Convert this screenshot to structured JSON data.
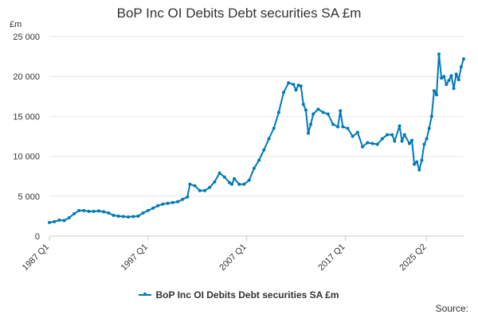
{
  "chart_data": {
    "type": "line",
    "title": "BoP Inc OI Debits Debt securities SA £m",
    "ylabel": "£m",
    "xlabel": "",
    "ylim": [
      0,
      25000
    ],
    "yticks": [
      0,
      5000,
      10000,
      15000,
      20000,
      25000
    ],
    "ytick_labels": [
      "0",
      "5 000",
      "10 000",
      "15 000",
      "20 000",
      "25 000"
    ],
    "xtick_labels": [
      "1987 Q1",
      "1997 Q1",
      "2007 Q1",
      "2017 Q1",
      "2025 Q2"
    ],
    "grid": true,
    "legend_position": "bottom",
    "series": [
      {
        "name": "BoP Inc OI Debits Debt securities SA £m",
        "color": "#0079b7",
        "points": [
          [
            "1987 Q1",
            1700
          ],
          [
            "1987 Q3",
            1800
          ],
          [
            "1988 Q1",
            2000
          ],
          [
            "1988 Q3",
            1950
          ],
          [
            "1989 Q1",
            2300
          ],
          [
            "1989 Q3",
            2800
          ],
          [
            "1990 Q1",
            3200
          ],
          [
            "1990 Q3",
            3200
          ],
          [
            "1991 Q1",
            3100
          ],
          [
            "1991 Q3",
            3100
          ],
          [
            "1992 Q1",
            3150
          ],
          [
            "1992 Q3",
            3050
          ],
          [
            "1993 Q1",
            2900
          ],
          [
            "1993 Q3",
            2600
          ],
          [
            "1994 Q1",
            2500
          ],
          [
            "1994 Q3",
            2450
          ],
          [
            "1995 Q1",
            2400
          ],
          [
            "1995 Q3",
            2450
          ],
          [
            "1996 Q1",
            2500
          ],
          [
            "1996 Q3",
            2900
          ],
          [
            "1997 Q1",
            3200
          ],
          [
            "1997 Q3",
            3500
          ],
          [
            "1998 Q1",
            3800
          ],
          [
            "1998 Q3",
            4000
          ],
          [
            "1999 Q1",
            4100
          ],
          [
            "1999 Q3",
            4200
          ],
          [
            "2000 Q1",
            4300
          ],
          [
            "2000 Q3",
            4600
          ],
          [
            "2001 Q1",
            4900
          ],
          [
            "2001 Q2",
            6500
          ],
          [
            "2001 Q4",
            6300
          ],
          [
            "2002 Q2",
            5700
          ],
          [
            "2002 Q4",
            5700
          ],
          [
            "2003 Q2",
            6100
          ],
          [
            "2003 Q4",
            6800
          ],
          [
            "2004 Q2",
            7900
          ],
          [
            "2004 Q4",
            7400
          ],
          [
            "2005 Q2",
            6700
          ],
          [
            "2005 Q3",
            6500
          ],
          [
            "2005 Q4",
            7200
          ],
          [
            "2006 Q2",
            6500
          ],
          [
            "2006 Q4",
            6500
          ],
          [
            "2007 Q2",
            7000
          ],
          [
            "2007 Q4",
            8500
          ],
          [
            "2008 Q2",
            9500
          ],
          [
            "2008 Q4",
            10800
          ],
          [
            "2009 Q2",
            12200
          ],
          [
            "2009 Q4",
            13500
          ],
          [
            "2010 Q2",
            15500
          ],
          [
            "2010 Q4",
            18000
          ],
          [
            "2011 Q2",
            19200
          ],
          [
            "2011 Q4",
            19000
          ],
          [
            "2012 Q1",
            18300
          ],
          [
            "2012 Q2",
            18900
          ],
          [
            "2012 Q3",
            18800
          ],
          [
            "2012 Q4",
            16500
          ],
          [
            "2013 Q1",
            15800
          ],
          [
            "2013 Q2",
            12900
          ],
          [
            "2013 Q3",
            14000
          ],
          [
            "2013 Q4",
            15300
          ],
          [
            "2014 Q2",
            15900
          ],
          [
            "2014 Q4",
            15500
          ],
          [
            "2015 Q2",
            15300
          ],
          [
            "2015 Q4",
            14000
          ],
          [
            "2016 Q2",
            13700
          ],
          [
            "2016 Q3",
            15700
          ],
          [
            "2016 Q4",
            13700
          ],
          [
            "2017 Q2",
            13500
          ],
          [
            "2017 Q4",
            12500
          ],
          [
            "2018 Q2",
            13000
          ],
          [
            "2018 Q4",
            11200
          ],
          [
            "2019 Q2",
            11700
          ],
          [
            "2019 Q4",
            11600
          ],
          [
            "2020 Q2",
            11500
          ],
          [
            "2020 Q4",
            12200
          ],
          [
            "2021 Q2",
            12700
          ],
          [
            "2021 Q4",
            12700
          ],
          [
            "2022 Q1",
            11900
          ],
          [
            "2022 Q3",
            13800
          ],
          [
            "2022 Q4",
            11900
          ],
          [
            "2023 Q1",
            12700
          ],
          [
            "2023 Q3",
            11600
          ],
          [
            "2023 Q4",
            12000
          ],
          [
            "2024 Q1",
            9000
          ],
          [
            "2024 Q2",
            9300
          ],
          [
            "2024 Q3",
            8300
          ],
          [
            "2024 Q4",
            9500
          ],
          [
            "2025 Q1",
            11500
          ],
          [
            "2025 Q2",
            12200
          ],
          [
            "2025 Q3",
            13500
          ],
          [
            "2025 Q4",
            15000
          ],
          [
            "2026 Q1",
            18200
          ],
          [
            "2026 Q2",
            17700
          ],
          [
            "2026 Q3",
            22800
          ],
          [
            "2026 Q4",
            19800
          ],
          [
            "2027 Q1",
            20000
          ],
          [
            "2027 Q2",
            19000
          ],
          [
            "2027 Q3",
            19500
          ],
          [
            "2027 Q4",
            20100
          ],
          [
            "2028 Q1",
            18500
          ],
          [
            "2028 Q2",
            20300
          ],
          [
            "2028 Q3",
            19600
          ],
          [
            "2028 Q4",
            21200
          ],
          [
            "2029 Q1",
            22200
          ]
        ]
      }
    ]
  },
  "legend": {
    "label": "BoP Inc OI Debits Debt securities SA £m"
  },
  "source_label": "Source:"
}
